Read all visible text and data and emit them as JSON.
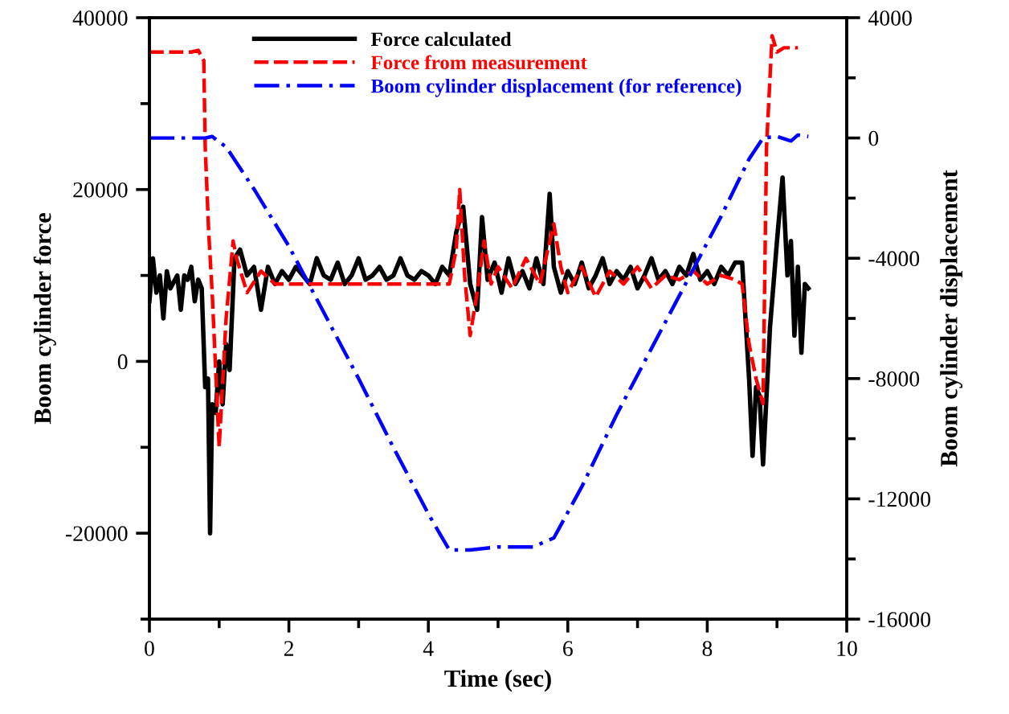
{
  "chart_data": {
    "type": "line",
    "xlabel": "Time (sec)",
    "ylabel": "Boom cylinder force",
    "y2label": "Boom cylinder displacement",
    "xlim": [
      0,
      10
    ],
    "xticks": [
      0,
      2,
      4,
      6,
      8,
      10
    ],
    "ylim": [
      -30000,
      40000
    ],
    "yticks": [
      -20000,
      0,
      20000,
      40000
    ],
    "y2lim": [
      -16000,
      4000
    ],
    "y2ticks": [
      -16000,
      -12000,
      -8000,
      -4000,
      0,
      4000
    ],
    "grid": false,
    "legend": "top",
    "marker": "none",
    "series": [
      {
        "name": "Force calculated",
        "color": "#000000",
        "line_style": "solid",
        "x": [
          0,
          0.05,
          0.1,
          0.15,
          0.2,
          0.25,
          0.3,
          0.4,
          0.45,
          0.5,
          0.55,
          0.6,
          0.65,
          0.7,
          0.75,
          0.8,
          0.84,
          0.87,
          0.9,
          0.95,
          1.0,
          1.05,
          1.1,
          1.15,
          1.22,
          1.3,
          1.4,
          1.5,
          1.6,
          1.7,
          1.8,
          1.9,
          2.0,
          2.1,
          2.2,
          2.3,
          2.4,
          2.5,
          2.6,
          2.7,
          2.8,
          2.9,
          3.0,
          3.1,
          3.2,
          3.3,
          3.4,
          3.5,
          3.6,
          3.7,
          3.8,
          3.9,
          4.0,
          4.1,
          4.2,
          4.3,
          4.4,
          4.5,
          4.6,
          4.7,
          4.77,
          4.85,
          4.95,
          5.05,
          5.15,
          5.25,
          5.35,
          5.45,
          5.55,
          5.65,
          5.74,
          5.8,
          5.9,
          6.0,
          6.1,
          6.2,
          6.3,
          6.4,
          6.5,
          6.6,
          6.7,
          6.8,
          6.9,
          7.0,
          7.1,
          7.2,
          7.3,
          7.4,
          7.5,
          7.6,
          7.7,
          7.8,
          7.9,
          8.0,
          8.1,
          8.2,
          8.3,
          8.4,
          8.5,
          8.6,
          8.65,
          8.7,
          8.75,
          8.8,
          8.9,
          9.0,
          9.08,
          9.15,
          9.2,
          9.25,
          9.3,
          9.35,
          9.4,
          9.45
        ],
        "values": [
          7000,
          12000,
          8000,
          10000,
          5000,
          10500,
          8500,
          10000,
          6000,
          10000,
          9500,
          11000,
          7000,
          9500,
          8500,
          -3000,
          -2000,
          -20000,
          -5000,
          -6000,
          0,
          -5000,
          2000,
          -1000,
          12000,
          13000,
          10000,
          11000,
          6000,
          11000,
          9000,
          10500,
          9500,
          11000,
          10000,
          9000,
          12000,
          10000,
          9500,
          11500,
          9000,
          10000,
          12000,
          9500,
          10000,
          11000,
          9500,
          10000,
          12000,
          10000,
          9500,
          10500,
          10000,
          9000,
          11000,
          10000,
          15000,
          18000,
          9000,
          6000,
          16800,
          9500,
          11500,
          8000,
          12000,
          9000,
          10500,
          8500,
          12000,
          9000,
          19500,
          11000,
          8000,
          10500,
          9000,
          11500,
          8500,
          10000,
          12000,
          9000,
          10500,
          9500,
          11000,
          8500,
          10000,
          12000,
          9500,
          10500,
          9000,
          11000,
          10000,
          12500,
          9500,
          10500,
          9000,
          11000,
          10000,
          11500,
          11500,
          -2000,
          -11000,
          -3000,
          -4000,
          -12000,
          4000,
          14000,
          21400,
          10000,
          14000,
          3000,
          11000,
          1000,
          9000,
          8500
        ]
      },
      {
        "name": "Force from measurement",
        "color": "#ff0000",
        "line_style": "dashed",
        "x": [
          0,
          0.6,
          0.7,
          0.78,
          0.8,
          0.85,
          0.9,
          1.0,
          1.1,
          1.2,
          1.25,
          1.4,
          1.6,
          1.8,
          2.0,
          2.5,
          3.0,
          3.5,
          4.0,
          4.3,
          4.4,
          4.45,
          4.52,
          4.6,
          4.7,
          4.8,
          4.9,
          5.0,
          5.2,
          5.4,
          5.6,
          5.8,
          5.9,
          6.0,
          6.2,
          6.4,
          6.6,
          6.8,
          7.0,
          7.2,
          7.4,
          7.6,
          7.8,
          8.0,
          8.2,
          8.4,
          8.5,
          8.6,
          8.7,
          8.8,
          8.85,
          8.93,
          9.0,
          9.1,
          9.3
        ],
        "values": [
          36000,
          36000,
          36200,
          35000,
          25000,
          15000,
          8000,
          -10000,
          5000,
          14000,
          12000,
          8000,
          10500,
          9000,
          9000,
          9000,
          9000,
          9000,
          9000,
          9000,
          13000,
          20000,
          10000,
          3000,
          8000,
          14000,
          9000,
          11000,
          8500,
          12000,
          9000,
          16000,
          11000,
          8000,
          11000,
          7500,
          10500,
          9000,
          11000,
          8500,
          10000,
          9500,
          10500,
          9000,
          10000,
          9500,
          9000,
          2000,
          -2000,
          -4900,
          25000,
          37900,
          36000,
          36500,
          36500
        ]
      },
      {
        "name": "Boom cylinder displacement (for reference)",
        "color": "#0000ff",
        "line_style": "dashdot",
        "axis": "y2",
        "x": [
          0,
          0.8,
          0.9,
          1.1,
          1.5,
          2.0,
          2.5,
          3.0,
          3.5,
          4.0,
          4.3,
          4.6,
          5.0,
          5.5,
          5.8,
          6.2,
          6.7,
          7.2,
          7.7,
          8.2,
          8.6,
          8.8,
          9.0,
          9.2,
          9.3,
          9.45
        ],
        "values": [
          0,
          0,
          50,
          -300,
          -1700,
          -3600,
          -5800,
          -8000,
          -10300,
          -12500,
          -13700,
          -13700,
          -13600,
          -13600,
          -13300,
          -11600,
          -9200,
          -7000,
          -4800,
          -2600,
          -700,
          0,
          50,
          -100,
          100,
          50
        ]
      }
    ]
  }
}
